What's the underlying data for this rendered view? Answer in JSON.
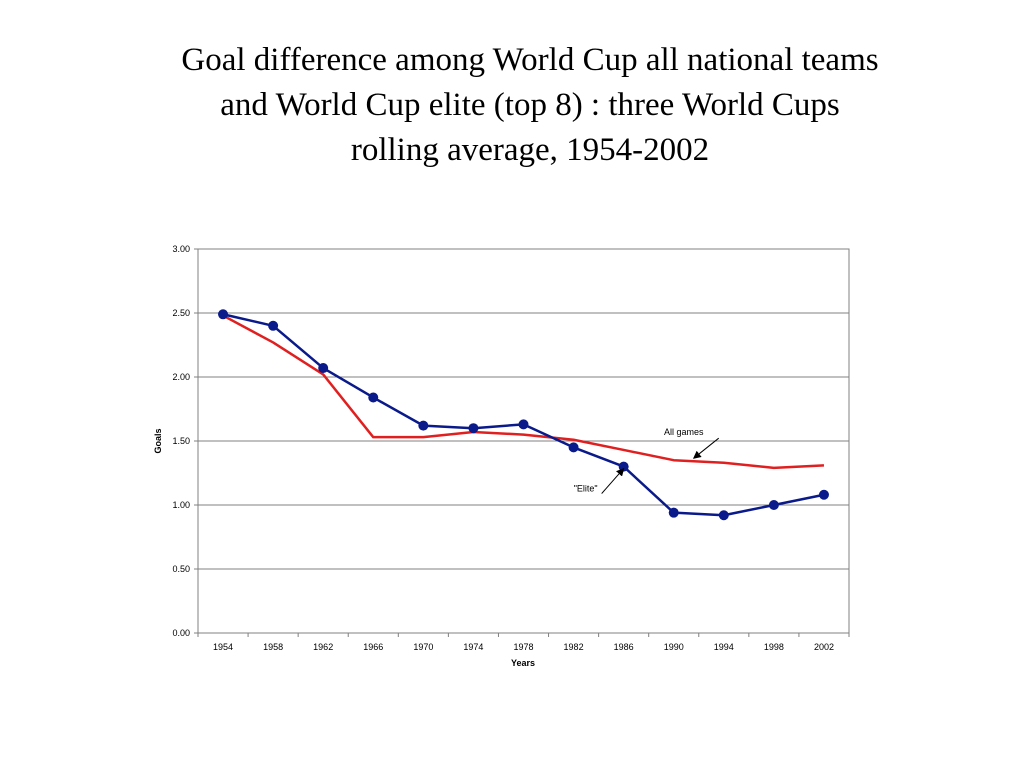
{
  "slide": {
    "title_lines": [
      "Goal difference among World Cup all national teams",
      "and World Cup elite (top 8) : three World Cups",
      "rolling average, 1954-2002"
    ]
  },
  "chart_data": {
    "type": "line",
    "title": "Goal difference among World Cup all national teams and World Cup elite (top 8) : three World Cups rolling average, 1954-2002",
    "xlabel": "Years",
    "ylabel": "Goals",
    "categories": [
      "1954",
      "1958",
      "1962",
      "1966",
      "1970",
      "1974",
      "1978",
      "1982",
      "1986",
      "1990",
      "1994",
      "1998",
      "2002"
    ],
    "ylim": [
      0,
      3
    ],
    "yticks": [
      "0.00",
      "0.50",
      "1.00",
      "1.50",
      "2.00",
      "2.50",
      "3.00"
    ],
    "grid": "horizontal",
    "series": [
      {
        "name": "All games",
        "color": "#e02020",
        "marker": "none",
        "values": [
          2.48,
          2.27,
          2.02,
          1.53,
          1.53,
          1.57,
          1.55,
          1.51,
          1.43,
          1.35,
          1.33,
          1.29,
          1.31
        ]
      },
      {
        "name": "\"Elite\"",
        "color": "#0a1a8a",
        "marker": "circle",
        "values": [
          2.49,
          2.4,
          2.07,
          1.84,
          1.62,
          1.6,
          1.63,
          1.45,
          1.3,
          0.94,
          0.92,
          1.0,
          1.08
        ]
      }
    ],
    "annotations": [
      {
        "text": "All games",
        "series": 0,
        "category": "1990"
      },
      {
        "text": "\"Elite\"",
        "series": 1,
        "category": "1986"
      }
    ]
  }
}
